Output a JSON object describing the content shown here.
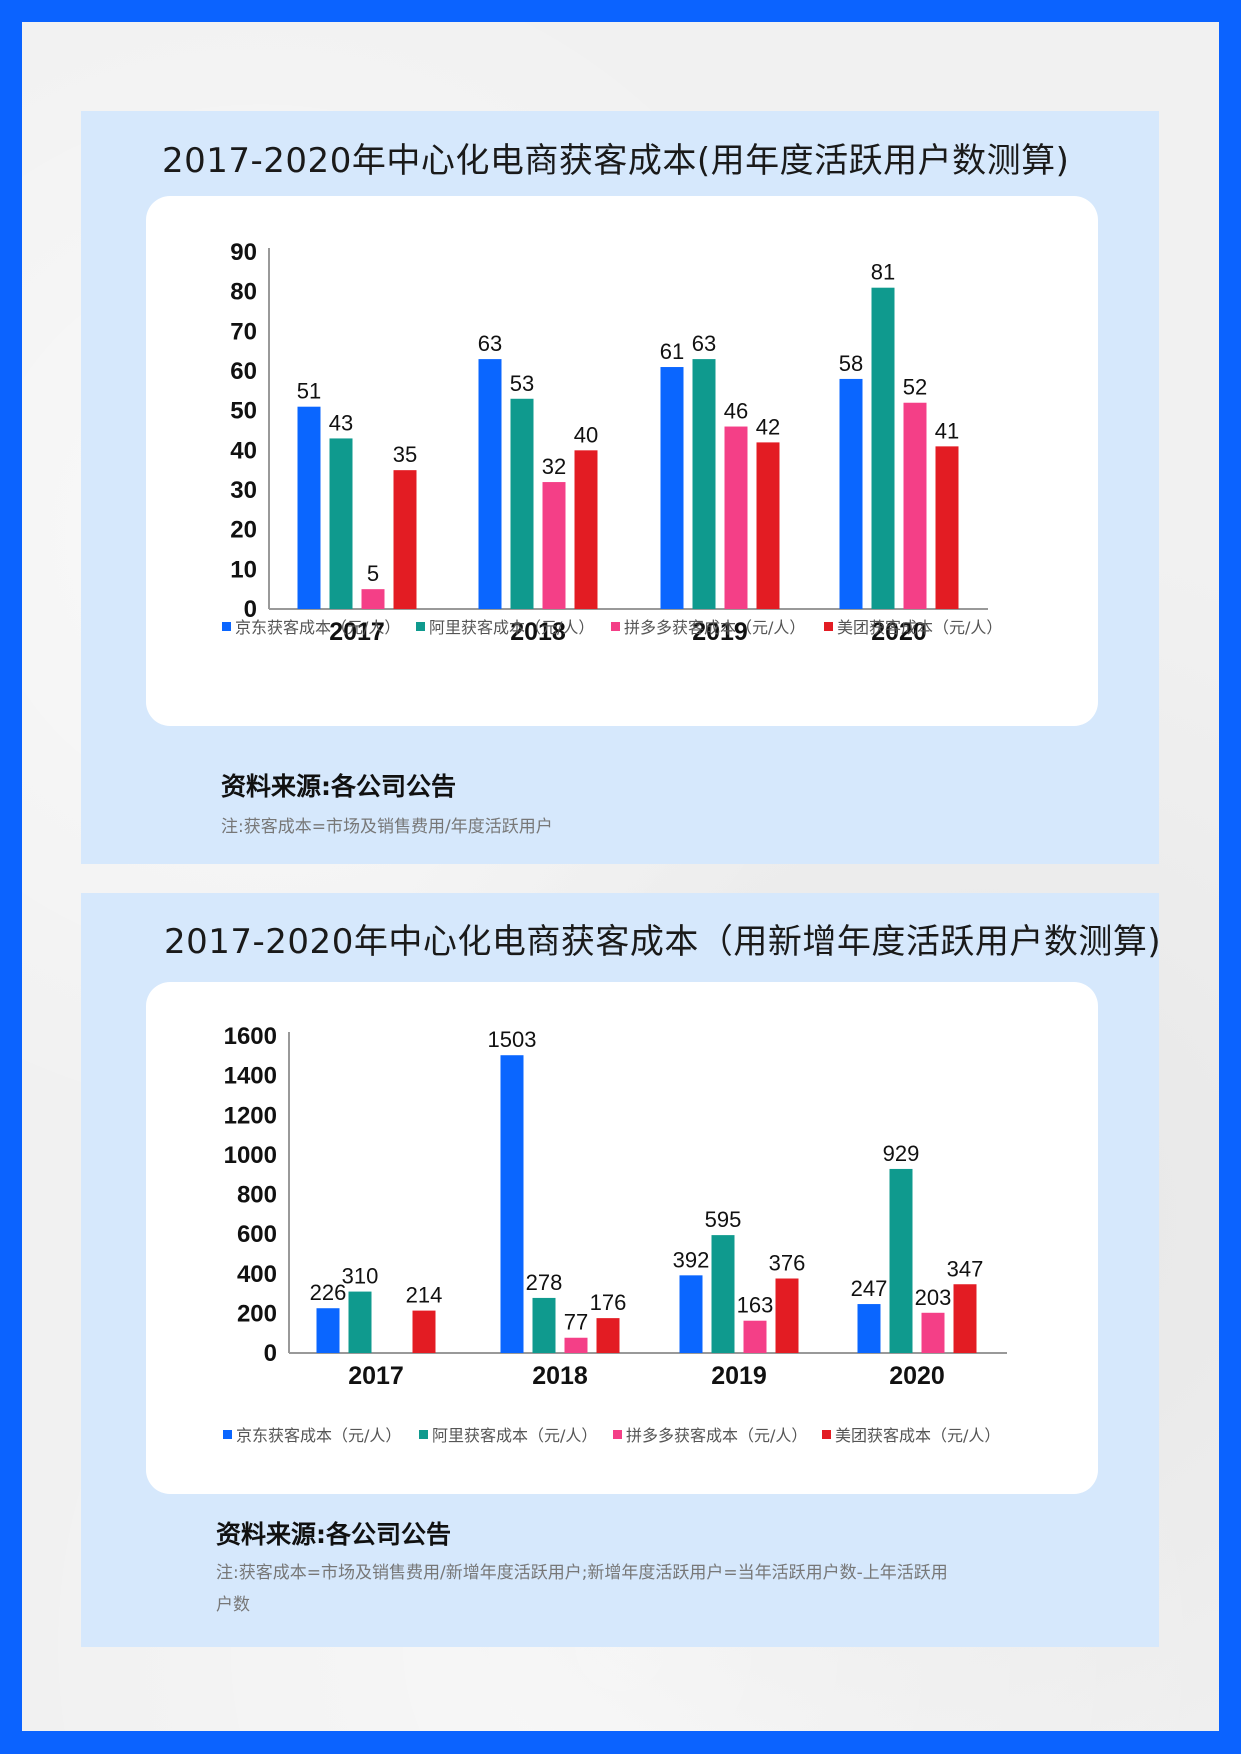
{
  "chart_data": [
    {
      "type": "bar",
      "title": "2017-2020年中心化电商获客成本(用年度活跃用户数测算)",
      "categories": [
        "2017",
        "2018",
        "2019",
        "2020"
      ],
      "series": [
        {
          "name": "京东获客成本（元/人）",
          "values": [
            51,
            63,
            61,
            58
          ]
        },
        {
          "name": "阿里获客成本（元/人）",
          "values": [
            43,
            53,
            63,
            81
          ]
        },
        {
          "name": "拼多多获客成本（元/人）",
          "values": [
            5,
            32,
            46,
            52
          ]
        },
        {
          "name": "美团获客成本（元/人）",
          "values": [
            35,
            40,
            42,
            41
          ]
        }
      ],
      "ylim": [
        0,
        90
      ],
      "yticks": [
        "0",
        "10",
        "20",
        "30",
        "40",
        "50",
        "60",
        "70",
        "80",
        "90"
      ],
      "legend": "bottom",
      "grid": false,
      "source": "资料来源:各公司公告",
      "note": "注:获客成本=市场及销售费用/年度活跃用户"
    },
    {
      "type": "bar",
      "title": "2017-2020年中心化电商获客成本（用新增年度活跃用户数测算)",
      "categories": [
        "2017",
        "2018",
        "2019",
        "2020"
      ],
      "series": [
        {
          "name": "京东获客成本（元/人）",
          "values": [
            226,
            1503,
            392,
            247
          ]
        },
        {
          "name": "阿里获客成本（元/人）",
          "values": [
            310,
            278,
            595,
            929
          ]
        },
        {
          "name": "拼多多获客成本（元/人）",
          "values": [
            null,
            77,
            163,
            203
          ]
        },
        {
          "name": "美团获客成本（元/人）",
          "values": [
            214,
            176,
            376,
            347
          ]
        }
      ],
      "ylim": [
        0,
        1600
      ],
      "yticks": [
        "0",
        "200",
        "400",
        "600",
        "800",
        "1000",
        "1200",
        "1400",
        "1600"
      ],
      "legend": "bottom",
      "grid": false,
      "source": "资料来源:各公司公告",
      "note": "注:获客成本=市场及销售费用/新增年度活跃用户;新增年度活跃用户=当年活跃用户数-上年活跃用户数"
    }
  ],
  "colors": {
    "jd": "#0a66ff",
    "ali": "#0f9a8e",
    "pdd": "#f43f87",
    "meituan": "#e31c23"
  }
}
